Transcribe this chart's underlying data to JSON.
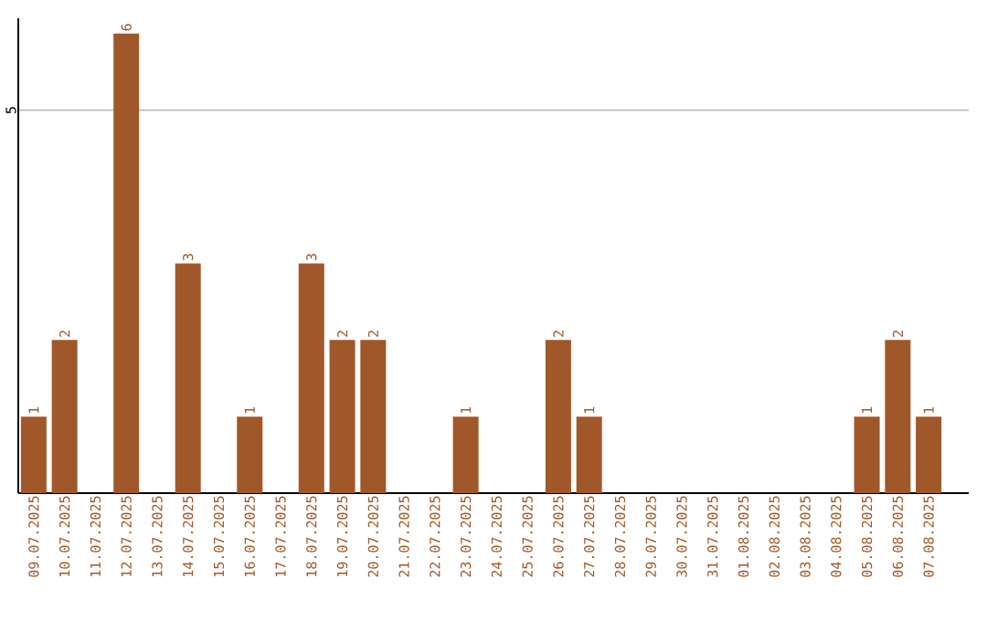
{
  "chart_data": {
    "type": "bar",
    "categories": [
      "09.07.2025",
      "10.07.2025",
      "11.07.2025",
      "12.07.2025",
      "13.07.2025",
      "14.07.2025",
      "15.07.2025",
      "16.07.2025",
      "17.07.2025",
      "18.07.2025",
      "19.07.2025",
      "20.07.2025",
      "21.07.2025",
      "22.07.2025",
      "23.07.2025",
      "24.07.2025",
      "25.07.2025",
      "26.07.2025",
      "27.07.2025",
      "28.07.2025",
      "29.07.2025",
      "30.07.2025",
      "31.07.2025",
      "01.08.2025",
      "02.08.2025",
      "03.08.2025",
      "04.08.2025",
      "05.08.2025",
      "06.08.2025",
      "07.08.2025"
    ],
    "values": [
      1,
      2,
      0,
      6,
      0,
      3,
      0,
      1,
      0,
      3,
      2,
      2,
      0,
      0,
      1,
      0,
      0,
      2,
      1,
      0,
      0,
      0,
      0,
      0,
      0,
      0,
      0,
      1,
      2,
      1
    ],
    "value_labels": [
      "1",
      "2",
      null,
      "6",
      null,
      "3",
      null,
      "1",
      null,
      "3",
      "2",
      "2",
      null,
      null,
      "1",
      null,
      null,
      "2",
      "1",
      null,
      null,
      null,
      null,
      null,
      null,
      null,
      null,
      "1",
      "2",
      "1"
    ],
    "color": "#a0582a",
    "ylim": [
      0,
      6.2
    ],
    "yticks": [
      5
    ],
    "grid": "y"
  }
}
